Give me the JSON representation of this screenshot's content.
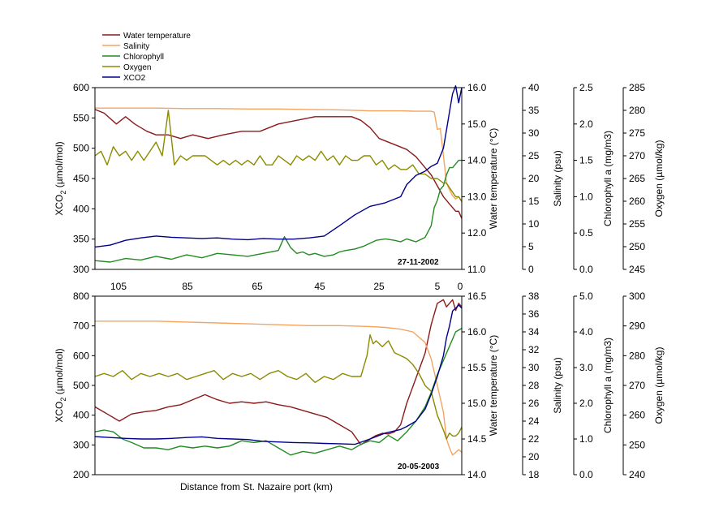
{
  "legend": {
    "entries": [
      {
        "label": "Water temperature",
        "color": "#8b1a1a"
      },
      {
        "label": "Salinity",
        "color": "#f4a460"
      },
      {
        "label": "Chlorophyll",
        "color": "#228b22"
      },
      {
        "label": "Oxygen",
        "color": "#8b8b00"
      },
      {
        "label": "XCO2",
        "color": "#00008b"
      }
    ]
  },
  "chart_data": [
    {
      "type": "line",
      "date_label": "27-11-2002",
      "x_tick_labels": [
        "105",
        "85",
        "65",
        "45",
        "25",
        "5",
        "0"
      ],
      "x_reversed": true,
      "axes": [
        {
          "key": "xco2",
          "label_main": "XCO",
          "label_sub": "2",
          "label_rest": " (µmol/mol)",
          "range": [
            300,
            600
          ],
          "ticks": [
            "300",
            "350",
            "400",
            "450",
            "500",
            "550",
            "600"
          ]
        },
        {
          "key": "temp",
          "label_main": "Water temperature (°C)",
          "range": [
            11.0,
            16.0
          ],
          "ticks": [
            "11.0",
            "12.0",
            "13.0",
            "14.0",
            "15.0",
            "16.0"
          ]
        },
        {
          "key": "sal",
          "label_main": "Salinity (psu)",
          "range": [
            0,
            40
          ],
          "ticks": [
            "0",
            "5",
            "10",
            "15",
            "20",
            "25",
            "30",
            "35",
            "40"
          ]
        },
        {
          "key": "chl",
          "label_main": "Chlorophyll a (mg/m3)",
          "range": [
            0.0,
            2.5
          ],
          "ticks": [
            "0.0",
            "0.5",
            "1.0",
            "1.5",
            "2.0",
            "2.5"
          ]
        },
        {
          "key": "oxy",
          "label_main": "Oxygen (µmol/kg)",
          "range": [
            245,
            285
          ],
          "ticks": [
            "245",
            "250",
            "255",
            "260",
            "265",
            "270",
            "275",
            "280",
            "285"
          ]
        }
      ],
      "series": [
        {
          "name": "Water temperature",
          "axis": "temp",
          "color": "#8b1a1a",
          "x": [
            120,
            117,
            113,
            110,
            107,
            103,
            100,
            96,
            92,
            88,
            83,
            78,
            72,
            66,
            60,
            54,
            48,
            44,
            40,
            36,
            33,
            30,
            27,
            24,
            21,
            18,
            15,
            12,
            10,
            8,
            6,
            5,
            4,
            3,
            2,
            1,
            0
          ],
          "values": [
            15.4,
            15.3,
            15.0,
            15.2,
            15.0,
            14.8,
            14.7,
            14.7,
            14.6,
            14.7,
            14.6,
            14.7,
            14.8,
            14.8,
            15.0,
            15.1,
            15.2,
            15.2,
            15.2,
            15.2,
            15.1,
            14.9,
            14.6,
            14.5,
            14.4,
            14.3,
            14.1,
            13.8,
            13.6,
            13.3,
            13.0,
            12.9,
            12.8,
            12.7,
            12.6,
            12.6,
            12.4
          ]
        },
        {
          "name": "Salinity",
          "axis": "sal",
          "color": "#f4a460",
          "x": [
            120,
            110,
            100,
            90,
            80,
            70,
            60,
            50,
            40,
            30,
            25,
            20,
            15,
            10,
            9,
            8,
            7,
            6,
            5,
            4,
            3,
            2,
            1,
            0
          ],
          "values": [
            35.5,
            35.5,
            35.5,
            35.4,
            35.4,
            35.3,
            35.3,
            35.2,
            35.1,
            34.9,
            34.9,
            34.9,
            34.8,
            34.8,
            34.6,
            30.8,
            31.0,
            25.0,
            19.0,
            17.5,
            16.2,
            15.5,
            16.0,
            14.8
          ]
        },
        {
          "name": "Chlorophyll",
          "axis": "chl",
          "color": "#228b22",
          "x": [
            120,
            115,
            110,
            105,
            100,
            95,
            90,
            85,
            80,
            75,
            70,
            65,
            60,
            58,
            56,
            54,
            52,
            50,
            48,
            45,
            42,
            40,
            38,
            35,
            32,
            30,
            28,
            25,
            22,
            20,
            18,
            15,
            12,
            10,
            9,
            8,
            7,
            6,
            5,
            4,
            3,
            2,
            1,
            0
          ],
          "values": [
            0.12,
            0.1,
            0.15,
            0.13,
            0.18,
            0.14,
            0.2,
            0.16,
            0.22,
            0.2,
            0.18,
            0.22,
            0.26,
            0.45,
            0.3,
            0.22,
            0.24,
            0.2,
            0.22,
            0.18,
            0.2,
            0.24,
            0.26,
            0.28,
            0.32,
            0.36,
            0.4,
            0.42,
            0.4,
            0.38,
            0.42,
            0.38,
            0.44,
            0.6,
            0.85,
            0.95,
            1.1,
            1.15,
            1.3,
            1.4,
            1.4,
            1.45,
            1.5,
            1.5
          ]
        },
        {
          "name": "Oxygen",
          "axis": "oxy",
          "color": "#8b8b00",
          "x": [
            120,
            118,
            116,
            114,
            112,
            110,
            108,
            106,
            104,
            102,
            100,
            98,
            96,
            94,
            92,
            90,
            88,
            86,
            84,
            82,
            80,
            78,
            76,
            74,
            72,
            70,
            68,
            66,
            64,
            62,
            60,
            58,
            56,
            54,
            52,
            50,
            48,
            46,
            44,
            42,
            40,
            38,
            36,
            34,
            32,
            30,
            28,
            26,
            24,
            22,
            20,
            18,
            16,
            14,
            12,
            10,
            8,
            6,
            5,
            4,
            3,
            2,
            1,
            0
          ],
          "values": [
            270,
            271,
            268,
            272,
            270,
            271,
            269,
            271,
            269,
            271,
            273,
            270,
            280,
            268,
            270,
            269,
            270,
            270,
            270,
            269,
            268,
            269,
            268,
            269,
            268,
            269,
            268,
            270,
            268,
            268,
            270,
            269,
            268,
            270,
            269,
            270,
            269,
            271,
            269,
            270,
            268,
            270,
            269,
            269,
            270,
            270,
            268,
            269,
            267,
            268,
            267,
            267,
            268,
            266,
            266,
            265,
            265,
            264,
            264,
            263,
            262,
            261,
            261,
            260
          ]
        },
        {
          "name": "XCO2",
          "axis": "xco2",
          "color": "#00008b",
          "x": [
            120,
            115,
            110,
            105,
            100,
            95,
            90,
            85,
            80,
            75,
            70,
            65,
            60,
            55,
            50,
            45,
            40,
            35,
            30,
            25,
            20,
            18,
            15,
            12,
            10,
            8,
            6,
            5,
            4,
            3,
            2,
            1,
            0
          ],
          "values": [
            337,
            340,
            348,
            352,
            355,
            353,
            352,
            351,
            352,
            350,
            349,
            351,
            350,
            350,
            352,
            355,
            372,
            390,
            404,
            410,
            420,
            440,
            455,
            462,
            470,
            475,
            500,
            530,
            560,
            590,
            603,
            575,
            600
          ]
        }
      ]
    },
    {
      "type": "line",
      "date_label": "20-05-2003",
      "xlabel": "Distance from St. Nazaire port (km)",
      "x_reversed": true,
      "axes": [
        {
          "key": "xco2",
          "label_main": "XCO",
          "label_sub": "2",
          "label_rest": " (µmol/mol)",
          "range": [
            200,
            800
          ],
          "ticks": [
            "200",
            "300",
            "400",
            "500",
            "600",
            "700",
            "800"
          ]
        },
        {
          "key": "temp",
          "label_main": "Water temperature (°C)",
          "range": [
            14.0,
            16.5
          ],
          "ticks": [
            "14.0",
            "14.5",
            "15.0",
            "15.5",
            "16.0",
            "16.5"
          ]
        },
        {
          "key": "sal",
          "label_main": "Salinity (psu)",
          "range": [
            18,
            38
          ],
          "ticks": [
            "18",
            "20",
            "22",
            "24",
            "26",
            "28",
            "30",
            "32",
            "34",
            "36",
            "38"
          ]
        },
        {
          "key": "chl",
          "label_main": "Chlorophyll a (mg/m3)",
          "range": [
            0.0,
            5.0
          ],
          "ticks": [
            "0.0",
            "1.0",
            "2.0",
            "3.0",
            "4.0",
            "5.0"
          ]
        },
        {
          "key": "oxy",
          "label_main": "Oxygen (µmol/kg)",
          "range": [
            240,
            300
          ],
          "ticks": [
            "240",
            "250",
            "260",
            "270",
            "280",
            "290",
            "300"
          ]
        }
      ],
      "series": [
        {
          "name": "Water temperature",
          "axis": "temp",
          "color": "#8b1a1a",
          "x": [
            120,
            116,
            112,
            108,
            104,
            100,
            96,
            92,
            88,
            84,
            80,
            76,
            72,
            68,
            64,
            60,
            56,
            52,
            48,
            44,
            40,
            36,
            33,
            30,
            28,
            26,
            24,
            22,
            20,
            18,
            15,
            12,
            10,
            8,
            6,
            5,
            4,
            3,
            2,
            1,
            0
          ],
          "values": [
            14.95,
            14.85,
            14.75,
            14.85,
            14.88,
            14.9,
            14.95,
            14.98,
            15.05,
            15.12,
            15.05,
            15.0,
            15.02,
            15.0,
            15.02,
            14.98,
            14.95,
            14.9,
            14.85,
            14.8,
            14.7,
            14.6,
            14.42,
            14.5,
            14.55,
            14.58,
            14.57,
            14.6,
            14.7,
            15.0,
            15.35,
            15.7,
            16.1,
            16.4,
            16.45,
            16.35,
            16.4,
            16.45,
            16.3,
            16.4,
            16.35
          ]
        },
        {
          "name": "Salinity",
          "axis": "sal",
          "color": "#f4a460",
          "x": [
            120,
            110,
            100,
            90,
            80,
            70,
            60,
            50,
            40,
            30,
            25,
            20,
            16,
            12,
            10,
            8,
            6,
            5,
            4,
            3,
            2,
            1,
            0
          ],
          "values": [
            35.2,
            35.2,
            35.2,
            35.1,
            35.0,
            34.9,
            34.8,
            34.7,
            34.7,
            34.6,
            34.5,
            34.3,
            34.0,
            32.8,
            31.0,
            28.0,
            25.0,
            22.0,
            21.0,
            20.2,
            20.5,
            20.8,
            20.5
          ]
        },
        {
          "name": "Chlorophyll",
          "axis": "chl",
          "color": "#228b22",
          "x": [
            120,
            117,
            114,
            111,
            108,
            104,
            100,
            96,
            92,
            88,
            84,
            80,
            76,
            72,
            68,
            64,
            60,
            56,
            52,
            48,
            44,
            40,
            36,
            33,
            30,
            27,
            24,
            21,
            18,
            15,
            12,
            10,
            8,
            6,
            4,
            2,
            0
          ],
          "values": [
            1.2,
            1.25,
            1.2,
            1.0,
            0.9,
            0.75,
            0.75,
            0.7,
            0.8,
            0.75,
            0.8,
            0.75,
            0.8,
            0.95,
            0.9,
            0.95,
            0.75,
            0.55,
            0.65,
            0.6,
            0.7,
            0.8,
            0.7,
            0.85,
            0.95,
            0.9,
            1.1,
            0.95,
            1.2,
            1.5,
            1.9,
            2.3,
            2.8,
            3.2,
            3.6,
            4.0,
            4.1
          ]
        },
        {
          "name": "Oxygen",
          "axis": "oxy",
          "color": "#8b8b00",
          "x": [
            120,
            117,
            114,
            111,
            108,
            105,
            102,
            99,
            96,
            93,
            90,
            87,
            84,
            81,
            78,
            75,
            72,
            69,
            66,
            63,
            60,
            57,
            54,
            51,
            48,
            45,
            42,
            39,
            36,
            33,
            31,
            30,
            29,
            28,
            26,
            24,
            22,
            20,
            18,
            16,
            14,
            12,
            10,
            8,
            6,
            5,
            4,
            3,
            2,
            1,
            0
          ],
          "values": [
            273,
            274,
            273,
            275,
            272,
            274,
            273,
            274,
            273,
            274,
            272,
            273,
            274,
            275,
            272,
            274,
            273,
            274,
            272,
            274,
            275,
            273,
            272,
            274,
            271,
            273,
            272,
            274,
            273,
            273,
            280,
            287,
            284,
            285,
            283,
            285,
            281,
            280,
            279,
            277,
            274,
            270,
            268,
            260,
            255,
            252,
            254,
            253,
            253,
            254,
            256
          ]
        },
        {
          "name": "XCO2",
          "axis": "xco2",
          "color": "#00008b",
          "x": [
            120,
            115,
            110,
            105,
            100,
            95,
            90,
            85,
            80,
            75,
            70,
            65,
            60,
            55,
            50,
            45,
            40,
            35,
            30,
            25,
            20,
            18,
            15,
            12,
            10,
            8,
            6,
            5,
            4,
            3,
            2,
            1,
            0
          ],
          "values": [
            328,
            325,
            322,
            320,
            320,
            322,
            325,
            327,
            322,
            320,
            318,
            312,
            310,
            308,
            307,
            305,
            304,
            302,
            320,
            340,
            352,
            362,
            380,
            420,
            470,
            530,
            600,
            660,
            700,
            750,
            760,
            770,
            760
          ]
        }
      ]
    }
  ]
}
